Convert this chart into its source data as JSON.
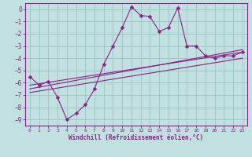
{
  "xlabel": "Windchill (Refroidissement éolien,°C)",
  "bg_color": "#c2e0e0",
  "grid_color": "#9ec8c8",
  "line_color": "#882288",
  "xlim": [
    -0.5,
    23.5
  ],
  "ylim": [
    -9.5,
    0.5
  ],
  "yticks": [
    0,
    -1,
    -2,
    -3,
    -4,
    -5,
    -6,
    -7,
    -8,
    -9
  ],
  "xticks": [
    0,
    1,
    2,
    3,
    4,
    5,
    6,
    7,
    8,
    9,
    10,
    11,
    12,
    13,
    14,
    15,
    16,
    17,
    18,
    19,
    20,
    21,
    22,
    23
  ],
  "main_line_x": [
    0,
    1,
    2,
    3,
    4,
    5,
    6,
    7,
    8,
    9,
    10,
    11,
    12,
    13,
    14,
    15,
    16,
    17,
    18,
    19,
    20,
    21,
    22,
    23
  ],
  "main_line_y": [
    -5.5,
    -6.2,
    -5.9,
    -7.2,
    -9.0,
    -8.5,
    -7.8,
    -6.5,
    -4.5,
    -3.0,
    -1.5,
    0.2,
    -0.5,
    -0.6,
    -1.8,
    -1.5,
    0.1,
    -3.0,
    -3.0,
    -3.8,
    -4.0,
    -3.8,
    -3.8,
    -3.5
  ],
  "line2_x": [
    0,
    23
  ],
  "line2_y": [
    -6.2,
    -3.5
  ],
  "line3_x": [
    0,
    23
  ],
  "line3_y": [
    -6.5,
    -3.3
  ],
  "line4_x": [
    0,
    23
  ],
  "line4_y": [
    -6.8,
    -4.0
  ]
}
